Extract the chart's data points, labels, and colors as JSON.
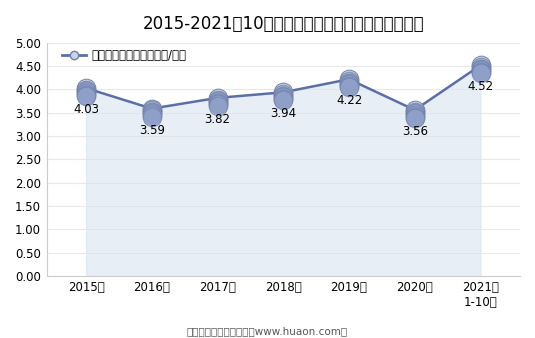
{
  "title": "2015-2021年10月大连商品交易所鸡蛋期货成交均价",
  "legend_label": "鸡蛋期货成交均价（万元/手）",
  "x_labels": [
    "2015年",
    "2016年",
    "2017年",
    "2018年",
    "2019年",
    "2020年",
    "2021年\n1-10月"
  ],
  "x_values": [
    0,
    1,
    2,
    3,
    4,
    5,
    6
  ],
  "y_values": [
    4.03,
    3.59,
    3.82,
    3.94,
    4.22,
    3.56,
    4.52
  ],
  "ylim": [
    0,
    5.0
  ],
  "yticks": [
    0.0,
    0.5,
    1.0,
    1.5,
    2.0,
    2.5,
    3.0,
    3.5,
    4.0,
    4.5,
    5.0
  ],
  "line_color": "#5B6FA6",
  "marker_top_color": "#C8D4E8",
  "marker_mid_color": "#8FA0C8",
  "marker_edge_color": "#7080A8",
  "fill_color": "#D9E4F0",
  "fill_alpha": 0.6,
  "background_color": "#FFFFFF",
  "footer": "制图：华经产业研究院（www.huaon.com）",
  "title_fontsize": 12,
  "label_fontsize": 8.5,
  "tick_fontsize": 8.5,
  "footer_fontsize": 7.5,
  "annotation_fontsize": 8.5
}
